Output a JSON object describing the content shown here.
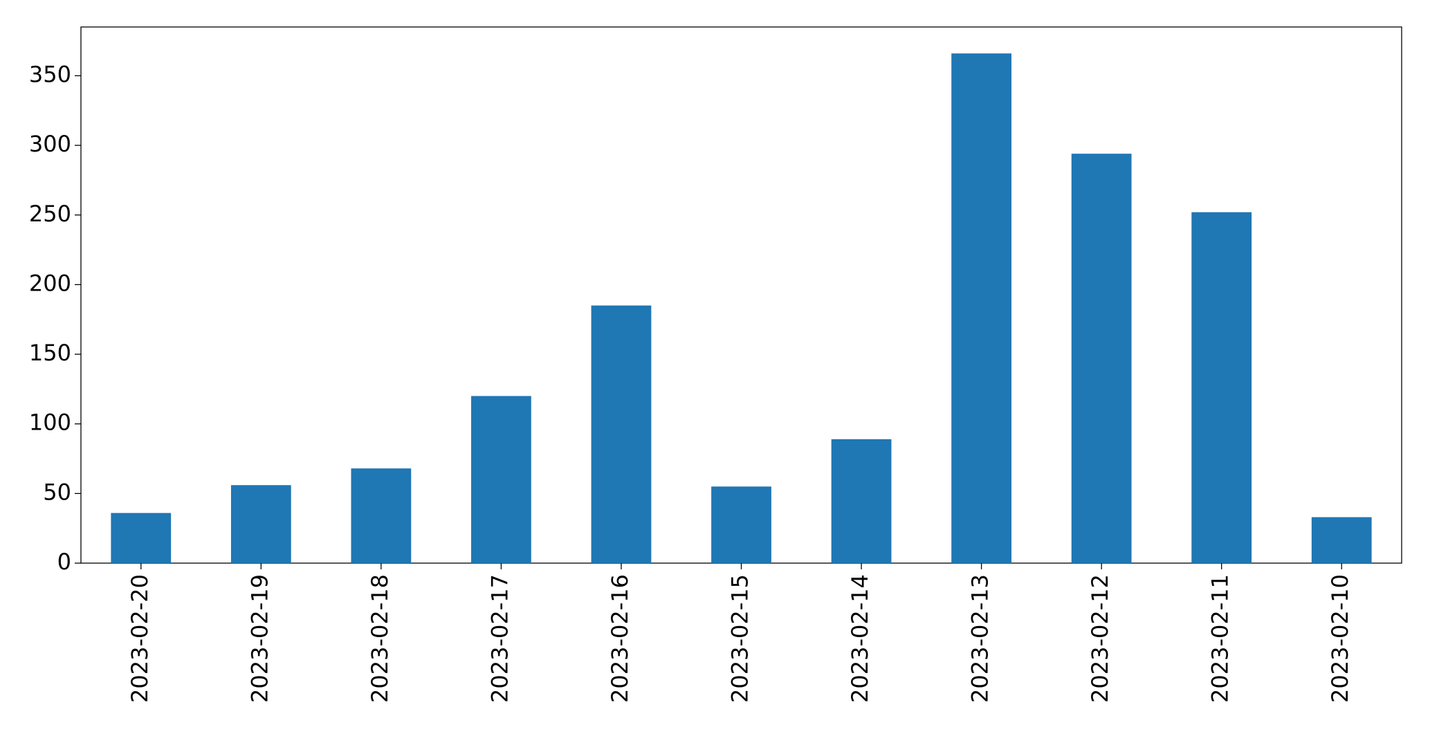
{
  "chart_data": {
    "type": "bar",
    "categories": [
      "2023-02-20",
      "2023-02-19",
      "2023-02-18",
      "2023-02-17",
      "2023-02-16",
      "2023-02-15",
      "2023-02-14",
      "2023-02-13",
      "2023-02-12",
      "2023-02-11",
      "2023-02-10"
    ],
    "values": [
      36,
      56,
      68,
      120,
      185,
      55,
      89,
      366,
      294,
      252,
      33
    ],
    "color": "#1f77b4",
    "ylim": [
      0,
      385
    ],
    "yticks": [
      0,
      50,
      100,
      150,
      200,
      250,
      300,
      350
    ],
    "grid": false
  }
}
